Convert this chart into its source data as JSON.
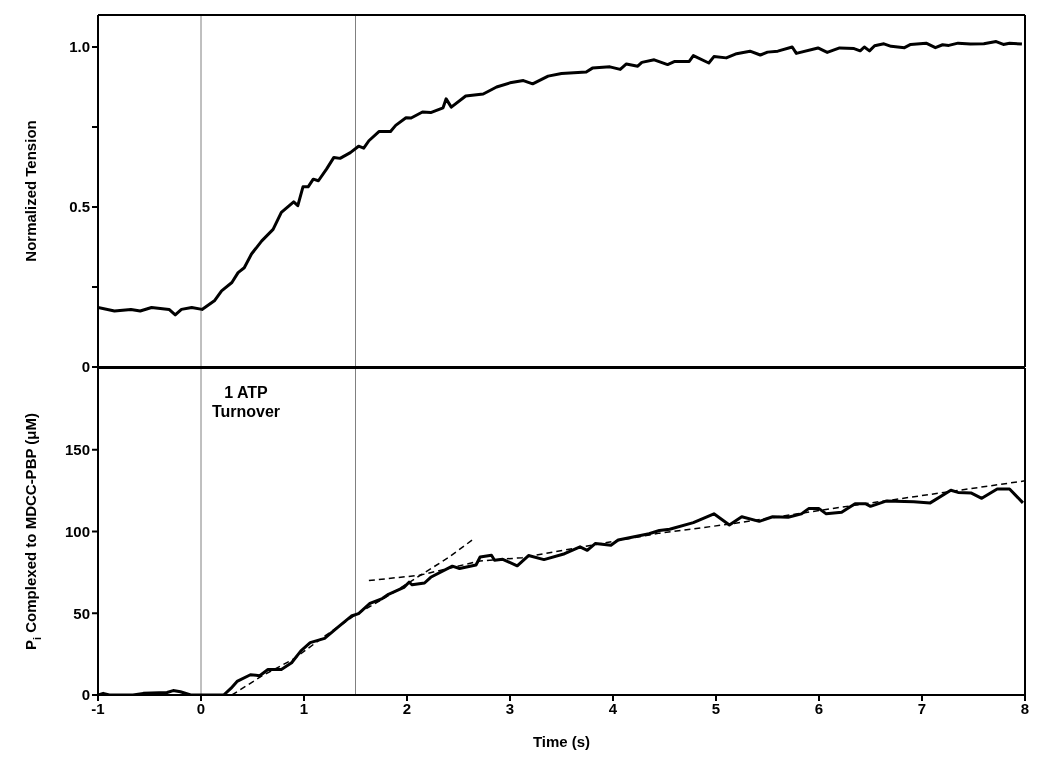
{
  "chart_data": [
    {
      "type": "line",
      "ylabel": "Normalized Tension",
      "xlim": [
        -1,
        8
      ],
      "xticks": [
        -1,
        0,
        1,
        2,
        3,
        4,
        5,
        6,
        7,
        8
      ],
      "ylim": [
        0,
        1.1
      ],
      "yticks": [
        0,
        {
          "value": 0.25,
          "label": null
        },
        0.5,
        {
          "value": 0.75,
          "label": null
        },
        {
          "value": 1,
          "label": "1.0"
        }
      ],
      "tick_labels": "y",
      "ref_lines": [
        {
          "axis": "x",
          "value": 0,
          "color": "#808080"
        },
        {
          "axis": "x",
          "value": 1.5,
          "color": "#808080"
        }
      ],
      "series": [
        {
          "color": "#000000",
          "x": [
            -1,
            -0.84,
            -0.68,
            -0.59,
            -0.48,
            -0.31,
            -0.25,
            -0.19,
            -0.09,
            0.01,
            0.13,
            0.2,
            0.3,
            0.36,
            0.42,
            0.49,
            0.59,
            0.7,
            0.78,
            0.9,
            0.94,
            0.99,
            1.04,
            1.09,
            1.14,
            1.22,
            1.29,
            1.35,
            1.45,
            1.53,
            1.58,
            1.63,
            1.73,
            1.84,
            1.89,
            1.99,
            2.04,
            2.15,
            2.23,
            2.35,
            2.38,
            2.43,
            2.57,
            2.74,
            2.87,
            3.0,
            3.13,
            3.22,
            3.37,
            3.5,
            3.74,
            3.8,
            3.97,
            4.07,
            4.13,
            4.24,
            4.28,
            4.4,
            4.53,
            4.6,
            4.74,
            4.78,
            4.93,
            4.98,
            5.1,
            5.2,
            5.33,
            5.43,
            5.5,
            5.6,
            5.74,
            5.78,
            5.99,
            6.08,
            6.2,
            6.34,
            6.4,
            6.44,
            6.49,
            6.54,
            6.63,
            6.7,
            6.83,
            6.89,
            7.04,
            7.13,
            7.2,
            7.26,
            7.35,
            7.47,
            7.6,
            7.72,
            7.79,
            7.85,
            7.97
          ],
          "values": [
            0.186,
            0.175,
            0.18,
            0.175,
            0.186,
            0.18,
            0.163,
            0.18,
            0.186,
            0.18,
            0.207,
            0.238,
            0.264,
            0.295,
            0.31,
            0.353,
            0.394,
            0.43,
            0.483,
            0.516,
            0.504,
            0.563,
            0.563,
            0.587,
            0.582,
            0.619,
            0.655,
            0.652,
            0.67,
            0.69,
            0.684,
            0.707,
            0.736,
            0.736,
            0.755,
            0.779,
            0.778,
            0.797,
            0.795,
            0.81,
            0.838,
            0.812,
            0.847,
            0.853,
            0.875,
            0.888,
            0.895,
            0.885,
            0.909,
            0.917,
            0.922,
            0.934,
            0.938,
            0.93,
            0.947,
            0.94,
            0.952,
            0.96,
            0.945,
            0.955,
            0.955,
            0.973,
            0.95,
            0.97,
            0.966,
            0.979,
            0.987,
            0.975,
            0.984,
            0.987,
            1.0,
            0.98,
            0.997,
            0.983,
            0.997,
            0.995,
            0.988,
            1.0,
            0.988,
            1.004,
            1.01,
            1.002,
            0.998,
            1.008,
            1.012,
            0.998,
            1.007,
            1.005,
            1.012,
            1.009,
            1.01,
            1.017,
            1.008,
            1.012,
            1.009
          ]
        }
      ]
    },
    {
      "type": "line",
      "xlabel": "Time (s)",
      "ylabel": "P$_{i}$ Complexed to MDCC-PBP (μM)",
      "xlim": [
        -1,
        8
      ],
      "xticks": [
        -1,
        0,
        1,
        2,
        3,
        4,
        5,
        6,
        7,
        8
      ],
      "ylim": [
        0,
        200
      ],
      "yticks": [
        0,
        50,
        100,
        150
      ],
      "annotations": [
        "1 ATP Turnover"
      ],
      "ref_lines": [
        {
          "axis": "x",
          "value": 0,
          "color": "#808080"
        },
        {
          "axis": "x",
          "value": 1.5,
          "color": "#808080"
        }
      ],
      "series": [
        {
          "color": "#000000",
          "x": [
            -1,
            -0.95,
            -0.89,
            -0.66,
            -0.56,
            -0.33,
            -0.27,
            -0.2,
            -0.1,
            0.01,
            0.075,
            0.16,
            0.22,
            0.29,
            0.35,
            0.48,
            0.57,
            0.65,
            0.78,
            0.88,
            0.97,
            1.06,
            1.2,
            1.33,
            1.46,
            1.53,
            1.64,
            1.76,
            1.82,
            1.97,
            2.02,
            2.05,
            2.17,
            2.23,
            2.44,
            2.51,
            2.67,
            2.71,
            2.82,
            2.85,
            2.93,
            3.07,
            3.18,
            3.33,
            3.53,
            3.68,
            3.75,
            3.83,
            3.98,
            4.05,
            4.35,
            4.45,
            4.55,
            4.78,
            4.98,
            5.13,
            5.25,
            5.42,
            5.55,
            5.7,
            5.83,
            5.9,
            6.0,
            6.07,
            6.22,
            6.35,
            6.45,
            6.5,
            6.65,
            6.92,
            7.08,
            7.28,
            7.35,
            7.48,
            7.58,
            7.73,
            7.85,
            7.98
          ],
          "values": [
            0,
            1,
            0,
            0,
            1,
            1.5,
            2.7,
            2,
            0,
            0,
            0,
            0,
            0,
            4,
            8.3,
            12.4,
            11.8,
            15.6,
            15.6,
            19.7,
            27,
            32,
            34.6,
            41.5,
            48.3,
            49.8,
            56,
            59,
            61.6,
            65.8,
            69,
            67.4,
            68.5,
            72,
            78.8,
            77.4,
            79.5,
            84.4,
            85.5,
            82.4,
            83,
            79,
            85.3,
            82.8,
            86.4,
            90.6,
            88.5,
            92.7,
            91.6,
            94.8,
            98.6,
            100.6,
            101.4,
            105.4,
            110.8,
            104,
            109,
            106.2,
            109,
            108.7,
            110.8,
            114,
            114,
            110.8,
            111.8,
            117,
            117,
            115.4,
            118.6,
            118.2,
            117.5,
            125.2,
            123.9,
            123.5,
            120.3,
            126,
            126,
            117.5
          ]
        },
        {
          "color": "#000000",
          "line_style": "dashed",
          "x": [
            0.3,
            0.6,
            0.9,
            1.2,
            1.5,
            1.8,
            2.1,
            2.4,
            2.66
          ],
          "values": [
            0,
            12,
            22,
            36,
            49,
            60,
            72,
            84,
            96
          ]
        },
        {
          "color": "#000000",
          "line_style": "dashed",
          "x": [
            1.63,
            2.12,
            2.71,
            3.12,
            4.45,
            5.12,
            6.12,
            8.0
          ],
          "values": [
            70,
            73.2,
            82,
            84,
            99,
            104.4,
            114,
            131
          ]
        }
      ]
    }
  ]
}
